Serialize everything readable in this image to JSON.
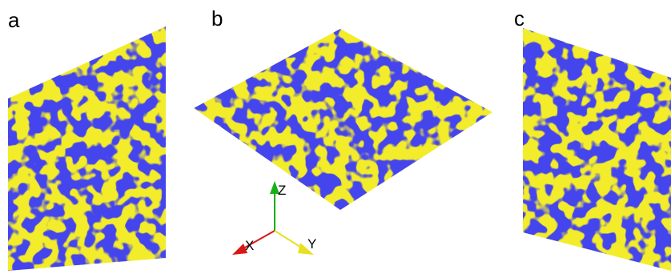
{
  "panels": [
    {
      "label": "a"
    },
    {
      "label": "b"
    },
    {
      "label": "c"
    }
  ],
  "axes": {
    "x": "X",
    "y": "Y",
    "z": "Z"
  },
  "colors": {
    "pore": "#1010d8",
    "matrix": "#f2ec2a",
    "x_axis": "#d81818",
    "y_axis": "#e8e020",
    "z_axis": "#18b018"
  }
}
